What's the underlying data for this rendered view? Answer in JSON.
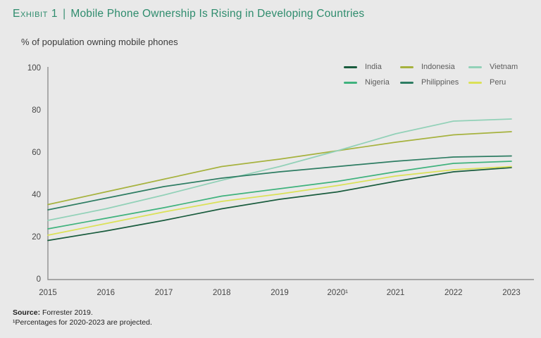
{
  "page": {
    "background": "#e9e9e9"
  },
  "header": {
    "exhibit_label": "Exhibit 1",
    "separator": "|",
    "title": "Mobile Phone Ownership Is Rising in Developing Countries",
    "accent_color": "#2e8c6d"
  },
  "subtitle": "% of population owning mobile phones",
  "chart_data": {
    "type": "line",
    "x": [
      2015,
      2016,
      2017,
      2018,
      2019,
      2020,
      2021,
      2022,
      2023
    ],
    "x_tick_labels": [
      "2015",
      "2016",
      "2017",
      "2018",
      "2019",
      "2020¹",
      "2021",
      "2022",
      "2023"
    ],
    "yticks": [
      0,
      20,
      40,
      60,
      80,
      100
    ],
    "ylim": [
      0,
      100
    ],
    "grid": false,
    "legend_position": "top-right",
    "axis_color": "#8f8f8f",
    "series": [
      {
        "name": "India",
        "color": "#1a5c3e",
        "values": [
          18.5,
          23,
          28,
          33.5,
          38,
          41.5,
          46.5,
          51,
          53
        ]
      },
      {
        "name": "Indonesia",
        "color": "#a6b23e",
        "values": [
          35.5,
          41.5,
          47.5,
          53.5,
          57,
          61,
          65,
          68.5,
          70
        ]
      },
      {
        "name": "Vietnam",
        "color": "#92d1b8",
        "values": [
          28,
          33.5,
          40,
          47,
          53.5,
          61,
          69,
          75,
          76
        ]
      },
      {
        "name": "Nigeria",
        "color": "#3fb27d",
        "values": [
          24,
          29,
          34,
          39.5,
          43,
          46.5,
          51,
          55,
          56
        ]
      },
      {
        "name": "Philippines",
        "color": "#2e7d63",
        "values": [
          33,
          38.5,
          44,
          48,
          51,
          53.5,
          56,
          58,
          58.5
        ]
      },
      {
        "name": "Peru",
        "color": "#dbe157",
        "values": [
          21,
          26.5,
          32,
          37,
          40.5,
          44.5,
          49,
          52,
          53.5
        ]
      }
    ]
  },
  "footer": {
    "source_label": "Source:",
    "source_text": "Forrester 2019.",
    "footnote": "¹Percentages for 2020-2023 are projected."
  }
}
